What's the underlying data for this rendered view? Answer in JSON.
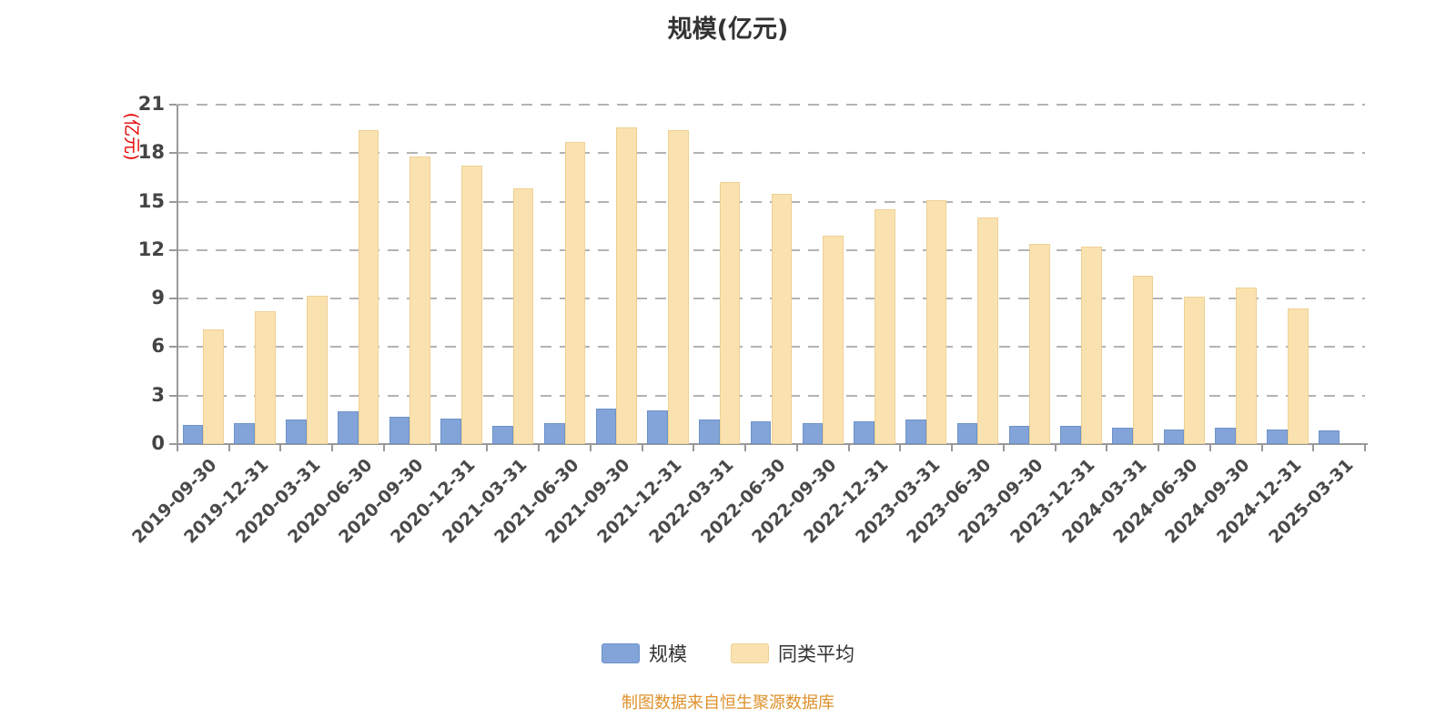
{
  "chart_data": {
    "type": "bar",
    "title": "规模(亿元)",
    "ylabel": "(亿元)",
    "ylabel_color": "#e60000",
    "source_note": "制图数据来自恒生聚源数据库",
    "source_note_color": "#de912c",
    "ylim": [
      0,
      21
    ],
    "ytick_interval": 3,
    "yticks": [
      0,
      3,
      6,
      9,
      12,
      15,
      18,
      21
    ],
    "grid": true,
    "grid_style": "dashed",
    "legend_position": "bottom",
    "categories": [
      "2019-09-30",
      "2019-12-31",
      "2020-03-31",
      "2020-06-30",
      "2020-09-30",
      "2020-12-31",
      "2021-03-31",
      "2021-06-30",
      "2021-09-30",
      "2021-12-31",
      "2022-03-31",
      "2022-06-30",
      "2022-09-30",
      "2022-12-31",
      "2023-03-31",
      "2023-06-30",
      "2023-09-30",
      "2023-12-31",
      "2024-03-31",
      "2024-06-30",
      "2024-09-30",
      "2024-12-31",
      "2025-03-31"
    ],
    "series": [
      {
        "name": "规模",
        "color": "#82a4d8",
        "border": "#6e92c9",
        "values": [
          1.2,
          1.3,
          1.5,
          2.0,
          1.7,
          1.6,
          1.1,
          1.3,
          2.2,
          2.1,
          1.5,
          1.4,
          1.3,
          1.4,
          1.5,
          1.3,
          1.1,
          1.1,
          1.0,
          0.9,
          1.0,
          0.9,
          0.85
        ]
      },
      {
        "name": "同类平均",
        "color": "#fae2b0",
        "border": "#edd094",
        "values": [
          7.1,
          8.2,
          9.2,
          19.4,
          17.8,
          17.2,
          15.8,
          18.7,
          19.6,
          19.4,
          16.2,
          15.5,
          12.9,
          14.5,
          15.1,
          14.0,
          12.4,
          12.2,
          10.4,
          9.1,
          9.7,
          8.4,
          null
        ]
      }
    ]
  }
}
